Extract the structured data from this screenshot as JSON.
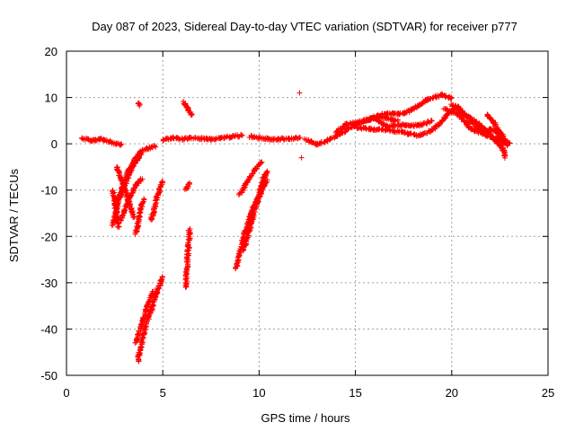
{
  "chart_data": {
    "type": "scatter",
    "title": "Day 087 of 2023, Sidereal Day-to-day VTEC variation (SDTVAR) for receiver p777",
    "xlabel": "GPS time / hours",
    "ylabel": "SDTVAR / TECUs",
    "xlim": [
      0,
      25
    ],
    "ylim": [
      -50,
      20
    ],
    "xticks": [
      0,
      5,
      10,
      15,
      20,
      25
    ],
    "yticks": [
      -50,
      -40,
      -30,
      -20,
      -10,
      0,
      10,
      20
    ],
    "grid": true,
    "legend": "none",
    "marker": "+",
    "series": [
      {
        "name": "SDTVAR",
        "color": "#ff0000",
        "segments": [
          [
            [
              0.8,
              1.2
            ],
            [
              1.3,
              0.7
            ],
            [
              1.8,
              1.0
            ],
            [
              2.3,
              0.4
            ],
            [
              2.9,
              -0.3
            ]
          ],
          [
            [
              2.6,
              -5.0
            ],
            [
              2.9,
              -8.0
            ],
            [
              3.2,
              -12.0
            ],
            [
              3.5,
              -16.0
            ]
          ],
          [
            [
              2.4,
              -17.5
            ],
            [
              2.8,
              -11.0
            ],
            [
              3.2,
              -6.0
            ],
            [
              3.6,
              -3.0
            ],
            [
              4.0,
              -1.3
            ],
            [
              4.6,
              -0.5
            ]
          ],
          [
            [
              2.5,
              -14.0
            ],
            [
              3.0,
              -9.0
            ],
            [
              3.5,
              -4.5
            ],
            [
              3.9,
              -2.0
            ]
          ],
          [
            [
              2.8,
              -16.5
            ],
            [
              3.3,
              -11.5
            ],
            [
              3.6,
              -9.0
            ],
            [
              3.9,
              -7.5
            ]
          ],
          [
            [
              2.4,
              -10.0
            ],
            [
              2.5,
              -12.0
            ],
            [
              2.6,
              -15.0
            ],
            [
              2.7,
              -18.0
            ]
          ],
          [
            [
              3.6,
              -19.5
            ],
            [
              3.8,
              -15.0
            ],
            [
              4.0,
              -12.0
            ]
          ],
          [
            [
              3.7,
              -47.0
            ],
            [
              4.0,
              -41.0
            ],
            [
              4.3,
              -37.0
            ],
            [
              4.7,
              -32.0
            ],
            [
              5.0,
              -28.8
            ]
          ],
          [
            [
              3.6,
              -43.0
            ],
            [
              3.9,
              -39.0
            ],
            [
              4.2,
              -35.0
            ],
            [
              4.5,
              -32.0
            ]
          ],
          [
            [
              4.4,
              -16.5
            ],
            [
              4.7,
              -11.5
            ],
            [
              5.0,
              -8.0
            ]
          ],
          [
            [
              3.7,
              8.8
            ],
            [
              3.8,
              8.2
            ]
          ],
          [
            [
              5.0,
              0.8
            ],
            [
              5.5,
              1.4
            ],
            [
              6.0,
              1.0
            ],
            [
              6.5,
              1.3
            ]
          ],
          [
            [
              6.1,
              9.0
            ],
            [
              6.3,
              7.5
            ],
            [
              6.5,
              6.2
            ]
          ],
          [
            [
              6.2,
              -10.0
            ],
            [
              6.4,
              -8.5
            ]
          ],
          [
            [
              6.2,
              -31.0
            ],
            [
              6.3,
              -24.0
            ],
            [
              6.4,
              -18.5
            ]
          ],
          [
            [
              6.6,
              1.2
            ],
            [
              7.5,
              1.0
            ],
            [
              8.5,
              1.5
            ],
            [
              9.1,
              1.8
            ]
          ],
          [
            [
              9.5,
              1.6
            ],
            [
              10.5,
              1.0
            ],
            [
              11.5,
              1.1
            ],
            [
              12.1,
              1.3
            ]
          ],
          [
            [
              8.8,
              -27.0
            ],
            [
              9.2,
              -20.0
            ],
            [
              9.6,
              -15.0
            ],
            [
              10.0,
              -11.0
            ],
            [
              10.3,
              -6.5
            ]
          ],
          [
            [
              9.2,
              -23.0
            ],
            [
              9.6,
              -17.0
            ],
            [
              10.1,
              -10.0
            ],
            [
              10.4,
              -6.0
            ]
          ],
          [
            [
              9.0,
              -11.0
            ],
            [
              9.4,
              -8.0
            ],
            [
              9.8,
              -5.5
            ],
            [
              10.1,
              -3.8
            ]
          ],
          [
            [
              9.5,
              -16.0
            ],
            [
              9.9,
              -12.0
            ],
            [
              10.4,
              -8.0
            ]
          ],
          [
            [
              12.2,
              -3.0
            ]
          ],
          [
            [
              12.1,
              11.0
            ]
          ],
          [
            [
              12.4,
              1.0
            ],
            [
              13.0,
              -0.2
            ],
            [
              13.6,
              0.8
            ],
            [
              14.3,
              2.3
            ],
            [
              15.0,
              4.2
            ],
            [
              15.8,
              5.5
            ],
            [
              16.5,
              6.5
            ],
            [
              17.5,
              6.5
            ],
            [
              18.2,
              8.0
            ],
            [
              18.8,
              9.7
            ],
            [
              19.5,
              10.6
            ],
            [
              20.0,
              9.8
            ]
          ],
          [
            [
              14.0,
              2.5
            ],
            [
              14.5,
              4.2
            ],
            [
              15.5,
              5.0
            ],
            [
              16.3,
              5.8
            ],
            [
              17.2,
              5.0
            ]
          ],
          [
            [
              15.0,
              3.5
            ],
            [
              15.8,
              3.2
            ],
            [
              16.5,
              3.0
            ],
            [
              17.5,
              2.5
            ],
            [
              18.2,
              1.8
            ],
            [
              18.8,
              2.5
            ],
            [
              19.3,
              4.0
            ],
            [
              19.8,
              6.5
            ],
            [
              20.3,
              8.0
            ],
            [
              21.0,
              5.0
            ],
            [
              21.6,
              2.5
            ],
            [
              22.0,
              3.2
            ],
            [
              22.4,
              2.5
            ],
            [
              22.8,
              -3.0
            ]
          ],
          [
            [
              16.0,
              5.5
            ],
            [
              16.6,
              3.8
            ],
            [
              17.5,
              4.0
            ],
            [
              18.3,
              4.0
            ],
            [
              19.0,
              5.0
            ]
          ],
          [
            [
              19.6,
              7.5
            ],
            [
              20.3,
              6.5
            ],
            [
              21.0,
              3.2
            ],
            [
              21.8,
              1.8
            ],
            [
              22.5,
              1.0
            ],
            [
              23.0,
              0.0
            ]
          ],
          [
            [
              20.0,
              8.5
            ],
            [
              20.5,
              7.0
            ],
            [
              21.0,
              5.5
            ],
            [
              21.5,
              4.0
            ],
            [
              22.0,
              2.0
            ],
            [
              22.7,
              -1.5
            ]
          ],
          [
            [
              21.8,
              6.5
            ],
            [
              22.2,
              4.5
            ],
            [
              22.6,
              2.0
            ],
            [
              22.9,
              -0.5
            ]
          ]
        ]
      }
    ]
  }
}
